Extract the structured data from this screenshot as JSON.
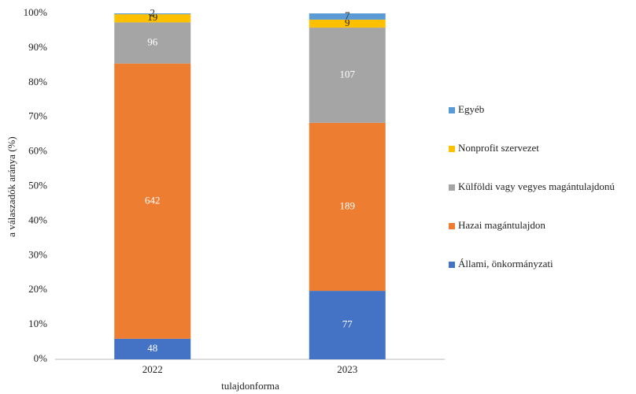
{
  "chart_data": {
    "type": "bar",
    "stacking": "percent",
    "y_label": "a válaszadók aránya (%)",
    "x_label": "tulajdonforma",
    "categories": [
      "2022",
      "2023"
    ],
    "series": [
      {
        "name": "Állami, önkormányzati",
        "color": "#4472c4",
        "values": [
          48,
          77
        ]
      },
      {
        "name": "Hazai magántulajdon",
        "color": "#ed7d31",
        "values": [
          642,
          189
        ]
      },
      {
        "name": "Külföldi vagy vegyes magántulajdonú",
        "color": "#a5a5a5",
        "values": [
          96,
          107
        ]
      },
      {
        "name": "Nonprofit szervezet",
        "color": "#ffc000",
        "values": [
          19,
          9
        ]
      },
      {
        "name": "Egyéb",
        "color": "#5b9bd5",
        "values": [
          2,
          7
        ]
      }
    ],
    "ylim": [
      0,
      100
    ],
    "yticks": [
      {
        "value": 0,
        "label": "0%"
      },
      {
        "value": 10,
        "label": "10%"
      },
      {
        "value": 20,
        "label": "20%"
      },
      {
        "value": 30,
        "label": "30%"
      },
      {
        "value": 40,
        "label": "40%"
      },
      {
        "value": 50,
        "label": "50%"
      },
      {
        "value": 60,
        "label": "60%"
      },
      {
        "value": 70,
        "label": "70%"
      },
      {
        "value": 80,
        "label": "80%"
      },
      {
        "value": 90,
        "label": "90%"
      },
      {
        "value": 100,
        "label": "100%"
      }
    ],
    "grid": false,
    "legend": "right"
  }
}
